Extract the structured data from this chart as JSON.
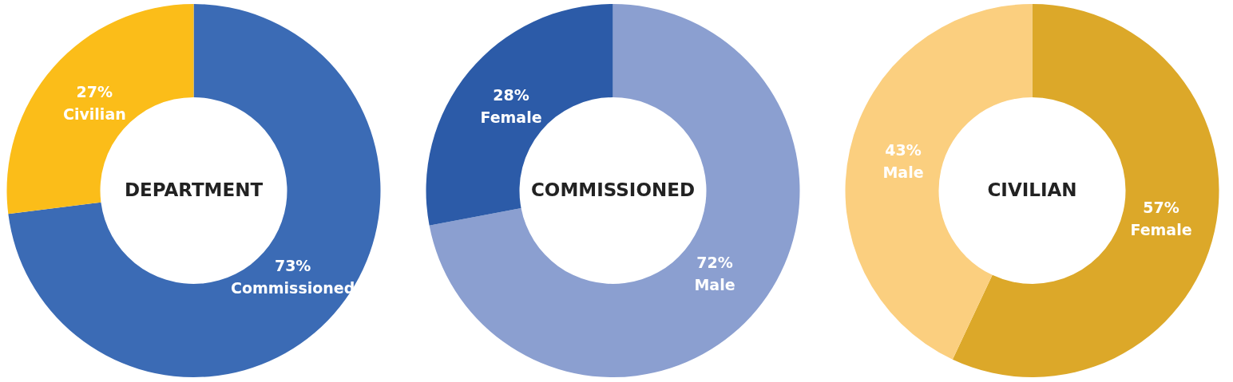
{
  "chart_data": [
    {
      "type": "donut",
      "title": "DEPARTMENT",
      "categories": [
        "Commissioned",
        "Civilian"
      ],
      "values": [
        73,
        27
      ],
      "colors": [
        "#3b6bb5",
        "#fbbd19"
      ],
      "value_labels": [
        "73%",
        "27%"
      ]
    },
    {
      "type": "donut",
      "title": "COMMISSIONED",
      "categories": [
        "Male",
        "Female"
      ],
      "values": [
        72,
        28
      ],
      "colors": [
        "#8b9fd0",
        "#2c5ba8"
      ],
      "value_labels": [
        "72%",
        "28%"
      ]
    },
    {
      "type": "donut",
      "title": "CIVILIAN",
      "categories": [
        "Female",
        "Male"
      ],
      "values": [
        57,
        43
      ],
      "colors": [
        "#dca829",
        "#fbcf7f"
      ],
      "value_labels": [
        "57%",
        "43%"
      ]
    }
  ]
}
